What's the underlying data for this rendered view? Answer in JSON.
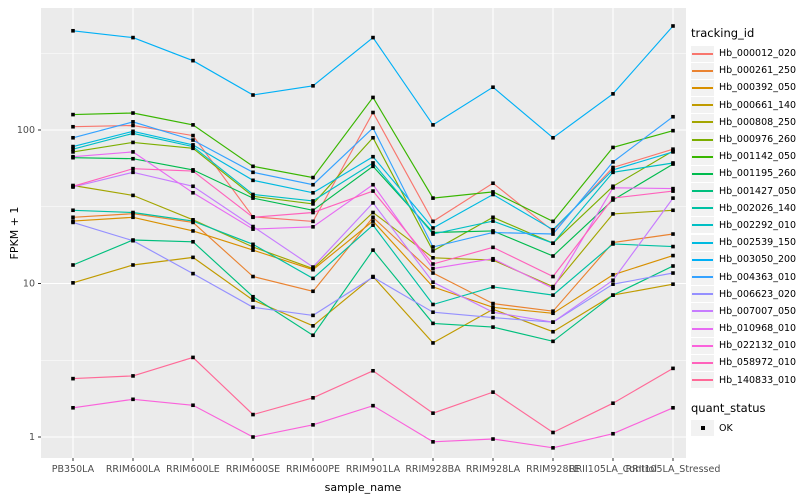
{
  "chart_data": {
    "type": "line",
    "xlabel": "sample_name",
    "ylabel": "FPKM + 1",
    "y_scale": "log10",
    "ylim": [
      0.8,
      550
    ],
    "y_ticks": [
      1,
      10,
      100
    ],
    "y_tick_labels": [
      "1",
      "10",
      "100"
    ],
    "y_minor_gridlines": [
      3.162,
      31.62,
      316.2
    ],
    "grid": "white-on-gray-panel",
    "legend_position": "right",
    "legend_title": "tracking_id",
    "quant_legend": {
      "title": "quant_status",
      "label": "OK",
      "marker": "black-square"
    },
    "point_marker": {
      "shape": "square",
      "color": "#000000"
    },
    "categories": [
      "PB350LA",
      "RRIM600LA",
      "RRIM600LE",
      "RRIM600SE",
      "RRIM600PE",
      "RRIM901LA",
      "RRIM928BA",
      "RRIM928LA",
      "RRIM928LE",
      "RRII105LA_Control",
      "RRII105LA_Stressed"
    ],
    "series": [
      {
        "name": "Hb_000012_020",
        "color": "#F8766D",
        "values": [
          105,
          107,
          92,
          27.2,
          25.4,
          130,
          25.4,
          45,
          22,
          57,
          75
        ]
      },
      {
        "name": "Hb_000261_250",
        "color": "#EA8331",
        "values": [
          27,
          28.5,
          25,
          11.1,
          8.9,
          27,
          11.7,
          7.4,
          6.6,
          18.5,
          21
        ]
      },
      {
        "name": "Hb_000392_050",
        "color": "#D89000",
        "values": [
          25.5,
          27,
          22,
          16.5,
          12.3,
          25.5,
          9.5,
          7.0,
          6.4,
          11.4,
          15.2
        ]
      },
      {
        "name": "Hb_000661_140",
        "color": "#C09B00",
        "values": [
          10.1,
          13.2,
          14.8,
          7.8,
          5.3,
          11.1,
          4.1,
          6.8,
          4.85,
          8.4,
          9.9
        ]
      },
      {
        "name": "Hb_000808_250",
        "color": "#A3A500",
        "values": [
          43.5,
          37.5,
          26,
          17.3,
          12.5,
          29,
          14.7,
          14.2,
          9.55,
          28.4,
          30
        ]
      },
      {
        "name": "Hb_000976_260",
        "color": "#7CAE00",
        "values": [
          72,
          83,
          76,
          37,
          33,
          89,
          16.3,
          27,
          18.3,
          43,
          73
        ]
      },
      {
        "name": "Hb_001142_050",
        "color": "#39B600",
        "values": [
          126,
          129,
          108,
          58,
          49,
          163,
          36,
          39.5,
          25.4,
          77,
          99
        ]
      },
      {
        "name": "Hb_001195_260",
        "color": "#00BB4E",
        "values": [
          66,
          65,
          55,
          36,
          30,
          58,
          21.5,
          22,
          15.1,
          35,
          60
        ]
      },
      {
        "name": "Hb_001427_050",
        "color": "#00BF7D",
        "values": [
          13.2,
          19.2,
          18.7,
          8.2,
          4.6,
          16.5,
          5.5,
          5.2,
          4.2,
          8.4,
          13
        ]
      },
      {
        "name": "Hb_002026_140",
        "color": "#00C1A3",
        "values": [
          30,
          29,
          25.5,
          18,
          10.8,
          24,
          7.3,
          9.5,
          8.4,
          18.1,
          17.4
        ]
      },
      {
        "name": "Hb_002292_010",
        "color": "#00BFC4",
        "values": [
          75,
          95,
          78,
          38,
          34.5,
          61,
          21,
          25.5,
          18.3,
          53,
          61
        ]
      },
      {
        "name": "Hb_002539_150",
        "color": "#00BAE0",
        "values": [
          78,
          98,
          80,
          47,
          39,
          67,
          23,
          38,
          22.4,
          55,
          72
        ]
      },
      {
        "name": "Hb_003050_200",
        "color": "#00B0F6",
        "values": [
          443,
          400,
          283,
          169,
          194,
          400,
          108,
          190,
          89,
          172,
          476
        ]
      },
      {
        "name": "Hb_004363_010",
        "color": "#35A2FF",
        "values": [
          89,
          113,
          86,
          53,
          44,
          103,
          17.3,
          21.5,
          21,
          62,
          122
        ]
      },
      {
        "name": "Hb_006623_020",
        "color": "#9590FF",
        "values": [
          25,
          19,
          11.6,
          7.0,
          6.2,
          11,
          6.5,
          6.0,
          5.6,
          9.9,
          11.7
        ]
      },
      {
        "name": "Hb_007007_050",
        "color": "#C77CFF",
        "values": [
          42.5,
          53,
          43,
          23.5,
          12.8,
          33.5,
          10.2,
          6.5,
          5.6,
          10.5,
          36
        ]
      },
      {
        "name": "Hb_010968_010",
        "color": "#E76BF3",
        "values": [
          67,
          72,
          39,
          22.6,
          23.4,
          44,
          12.5,
          14.5,
          9.3,
          42,
          41.5
        ]
      },
      {
        "name": "Hb_022132_010",
        "color": "#FA62DB",
        "values": [
          1.55,
          1.76,
          1.61,
          1.0,
          1.2,
          1.6,
          0.93,
          0.97,
          0.85,
          1.05,
          1.55
        ]
      },
      {
        "name": "Hb_058972_010",
        "color": "#FF62BC",
        "values": [
          43,
          56,
          54,
          27,
          29,
          40,
          13.4,
          17.2,
          11.1,
          36,
          40
        ]
      },
      {
        "name": "Hb_140833_010",
        "color": "#FF6A98",
        "values": [
          2.4,
          2.5,
          3.3,
          1.4,
          1.8,
          2.7,
          1.43,
          1.96,
          1.07,
          1.66,
          2.8
        ]
      }
    ],
    "panel_background": "#EBEBEB",
    "axis_text_color": "#4d4d4d"
  }
}
